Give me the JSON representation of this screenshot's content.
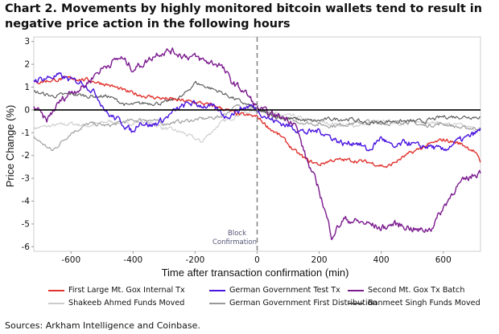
{
  "chart_data": {
    "type": "line",
    "title": "Chart 2. Movements by highly monitored bitcoin wallets tend to result in negative price action in the following hours",
    "xlabel": "Time after transaction confirmation (min)",
    "ylabel": "Price Change (%)",
    "xlim": [
      -720,
      720
    ],
    "ylim": [
      -6.2,
      3.2
    ],
    "xticks": [
      -600,
      -400,
      -200,
      0,
      200,
      400,
      600
    ],
    "yticks": [
      3,
      2,
      1,
      0,
      -1,
      -2,
      -3,
      -4,
      -5,
      -6
    ],
    "xtick_labels": [
      "-600",
      "-400",
      "-200",
      "0",
      "200",
      "400",
      "600"
    ],
    "ytick_labels": [
      "3",
      "2",
      "1",
      "0",
      "-1",
      "-2",
      "-3",
      "-4",
      "-5",
      "-6"
    ],
    "annotation": {
      "line1": "Block",
      "line2": "Confirmation",
      "x": 0
    },
    "reference_line_y": 0,
    "series": [
      {
        "name": "First Large Mt. Gox Internal Tx",
        "color": "#e0342f",
        "x": [
          -720,
          -660,
          -600,
          -540,
          -480,
          -420,
          -360,
          -300,
          -240,
          -180,
          -120,
          -60,
          0,
          40,
          80,
          120,
          160,
          200,
          240,
          300,
          360,
          420,
          480,
          540,
          600,
          660,
          700,
          720
        ],
        "y": [
          1.2,
          1.3,
          1.4,
          1.3,
          1.1,
          0.8,
          0.6,
          0.5,
          0.4,
          0.3,
          0.1,
          -0.2,
          -0.3,
          -0.8,
          -1.2,
          -1.8,
          -2.2,
          -2.4,
          -2.2,
          -2.2,
          -2.3,
          -2.5,
          -2.0,
          -1.6,
          -1.3,
          -1.5,
          -1.8,
          -2.3
        ]
      },
      {
        "name": "German Government Test Tx",
        "color": "#4a14e0",
        "x": [
          -720,
          -680,
          -640,
          -600,
          -560,
          -520,
          -480,
          -440,
          -400,
          -380,
          -340,
          -300,
          -260,
          -220,
          -180,
          -140,
          -100,
          -60,
          -20,
          0,
          40,
          80,
          120,
          160,
          200,
          240,
          280,
          320,
          360,
          400,
          440,
          480,
          520,
          560,
          600,
          640,
          680,
          720
        ],
        "y": [
          1.3,
          1.4,
          1.5,
          1.3,
          1.2,
          0.7,
          -0.2,
          -0.5,
          -1.0,
          -0.5,
          -0.7,
          -0.4,
          0.0,
          0.3,
          0.2,
          0.1,
          -0.3,
          0.0,
          0.2,
          0.0,
          -0.4,
          -0.6,
          -0.8,
          -1.0,
          -0.9,
          -1.2,
          -1.5,
          -1.4,
          -1.8,
          -1.2,
          -1.7,
          -1.4,
          -1.6,
          -1.6,
          -1.8,
          -1.4,
          -1.2,
          -0.9
        ]
      },
      {
        "name": "Second Mt. Gox Tx Batch",
        "color": "#7b1a8e",
        "x": [
          -720,
          -680,
          -640,
          -600,
          -560,
          -520,
          -480,
          -440,
          -400,
          -360,
          -320,
          -280,
          -240,
          -200,
          -160,
          -120,
          -80,
          -40,
          0,
          40,
          80,
          120,
          160,
          200,
          220,
          240,
          280,
          320,
          360,
          400,
          440,
          480,
          520,
          560,
          600,
          640,
          680,
          720
        ],
        "y": [
          0.2,
          -0.5,
          0.3,
          0.8,
          1.0,
          1.6,
          2.0,
          2.3,
          1.8,
          2.1,
          2.5,
          2.6,
          2.4,
          2.3,
          2.1,
          2.0,
          1.2,
          0.8,
          0.1,
          -0.2,
          -0.3,
          -0.5,
          -2.2,
          -3.5,
          -4.5,
          -5.5,
          -4.8,
          -4.9,
          -5.0,
          -5.2,
          -5.0,
          -5.1,
          -5.3,
          -5.2,
          -4.3,
          -3.4,
          -3.0,
          -2.7
        ]
      },
      {
        "name": "Shakeeb Ahmed Funds Moved",
        "color": "#cccccc",
        "x": [
          -720,
          -660,
          -600,
          -540,
          -480,
          -420,
          -360,
          -300,
          -240,
          -180,
          -120,
          -60,
          0,
          60,
          120,
          180,
          240,
          300,
          360,
          420,
          480,
          540,
          600,
          660,
          720
        ],
        "y": [
          -0.8,
          -0.7,
          -0.6,
          -0.7,
          -0.5,
          -0.6,
          -0.5,
          -0.8,
          -1.0,
          -1.4,
          -0.6,
          -0.2,
          0.0,
          -0.2,
          -0.3,
          -0.5,
          -0.6,
          -0.7,
          -0.6,
          -0.5,
          -0.6,
          -0.5,
          -0.6,
          -0.7,
          -0.9
        ]
      },
      {
        "name": "German Government First Distribution",
        "color": "#999999",
        "x": [
          -720,
          -660,
          -600,
          -540,
          -480,
          -420,
          -360,
          -300,
          -240,
          -180,
          -120,
          -60,
          0,
          60,
          120,
          180,
          240,
          300,
          360,
          420,
          480,
          540,
          600,
          660,
          720
        ],
        "y": [
          -1.2,
          -1.8,
          -1.0,
          -0.6,
          -0.7,
          -0.5,
          -0.4,
          -0.6,
          -0.5,
          -0.4,
          -0.3,
          0.2,
          0.0,
          -0.3,
          -0.5,
          -0.6,
          -0.7,
          -0.6,
          -0.5,
          -0.6,
          -0.5,
          -0.7,
          -0.6,
          -0.8,
          -0.8
        ]
      },
      {
        "name": "Banmeet Singh Funds Moved",
        "color": "#555555",
        "x": [
          -720,
          -660,
          -600,
          -540,
          -480,
          -420,
          -360,
          -300,
          -240,
          -200,
          -160,
          -120,
          -60,
          0,
          60,
          120,
          180,
          240,
          300,
          360,
          420,
          480,
          540,
          600,
          660,
          720
        ],
        "y": [
          0.8,
          0.6,
          0.7,
          0.6,
          0.6,
          0.2,
          0.3,
          0.3,
          0.6,
          1.2,
          1.0,
          0.8,
          0.4,
          0.0,
          -0.3,
          -0.4,
          -0.5,
          -0.4,
          -0.4,
          -0.6,
          -0.5,
          -0.5,
          -0.5,
          -0.3,
          -0.3,
          -0.3
        ]
      }
    ]
  },
  "source_note": "Sources: Arkham Intelligence and Coinbase."
}
